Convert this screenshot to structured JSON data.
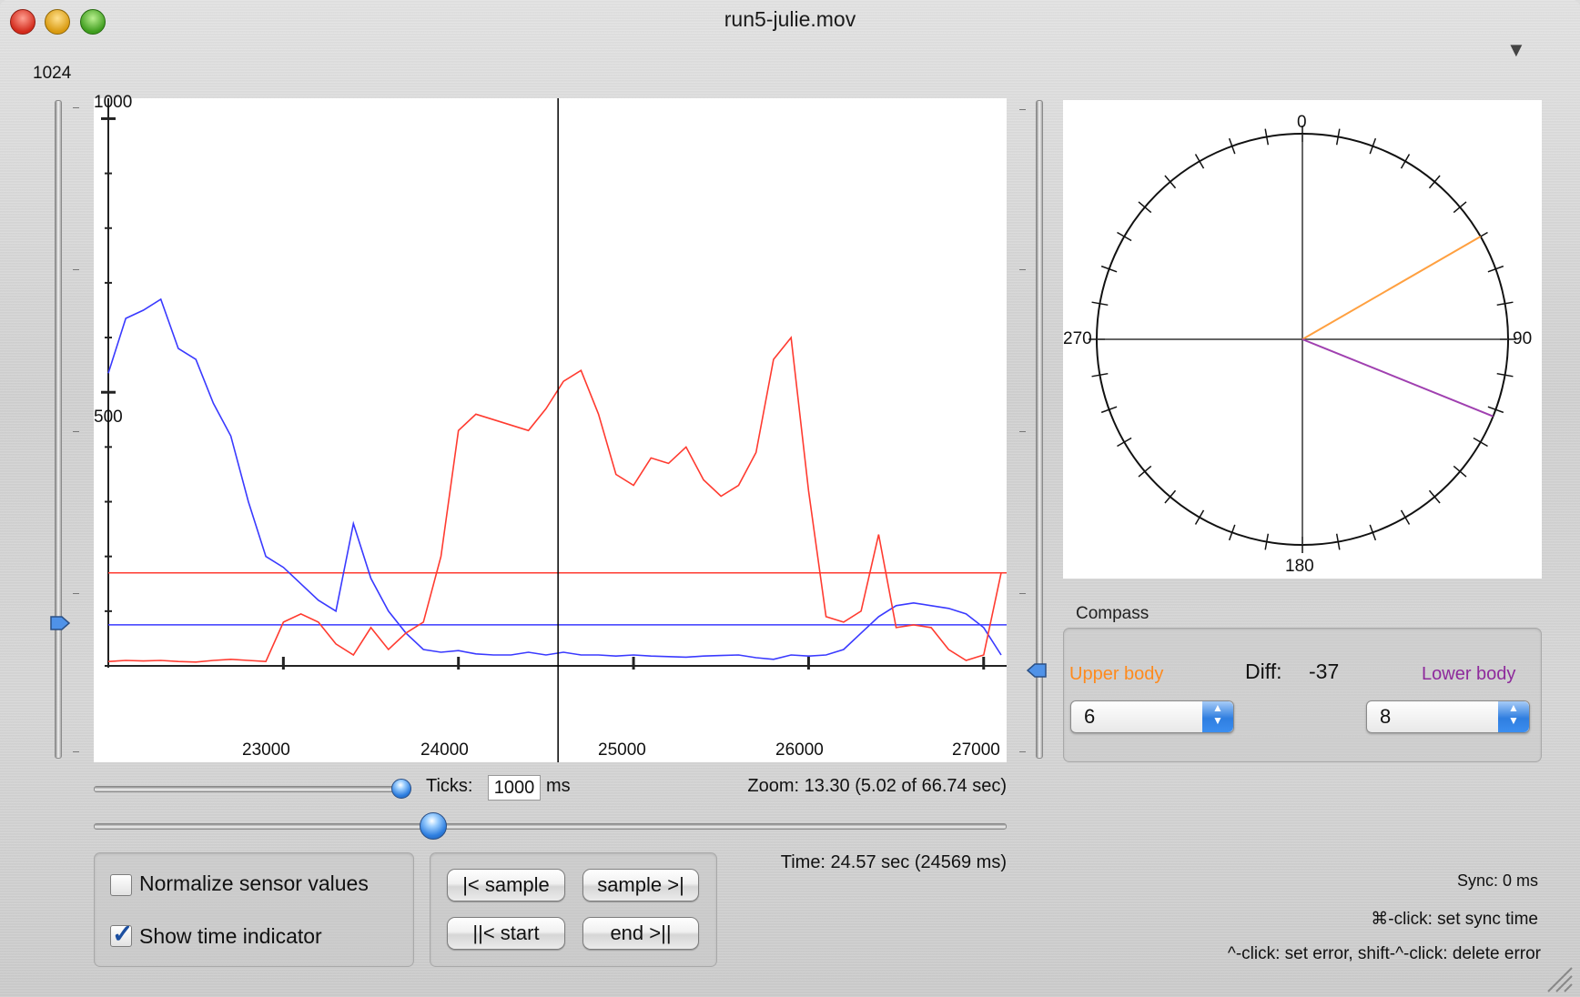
{
  "window": {
    "title": "run5-julie.mov"
  },
  "left_slider": {
    "max_label": "1024"
  },
  "graph": {
    "y_tick_labels": [
      "1000",
      "500"
    ],
    "x_tick_labels": [
      "23000",
      "24000",
      "25000",
      "26000",
      "27000"
    ]
  },
  "chart_data": {
    "type": "line",
    "xlim": [
      22000,
      27100
    ],
    "ylim": [
      0,
      1024
    ],
    "y_ticks": [
      1000,
      500
    ],
    "x_ticks": [
      23000,
      24000,
      25000,
      26000,
      27000
    ],
    "time_indicator_x": 24569,
    "threshold_lines": [
      {
        "color": "#ff3b30",
        "y": 170
      },
      {
        "color": "#3a3aff",
        "y": 75
      }
    ],
    "series": [
      {
        "color": "#3a3aff",
        "x": [
          22000,
          22100,
          22200,
          22300,
          22400,
          22500,
          22600,
          22700,
          22800,
          22900,
          23000,
          23100,
          23200,
          23300,
          23400,
          23500,
          23600,
          23700,
          23800,
          23900,
          24000,
          24100,
          24200,
          24300,
          24400,
          24500,
          24600,
          24700,
          24800,
          24900,
          25000,
          25100,
          25200,
          25300,
          25400,
          25500,
          25600,
          25700,
          25800,
          25900,
          26000,
          26100,
          26200,
          26300,
          26400,
          26500,
          26600,
          26700,
          26800,
          26900,
          27000,
          27100
        ],
        "y": [
          535,
          635,
          650,
          670,
          580,
          560,
          480,
          420,
          300,
          200,
          180,
          150,
          120,
          100,
          260,
          160,
          100,
          60,
          30,
          25,
          28,
          22,
          20,
          20,
          25,
          20,
          25,
          20,
          20,
          18,
          20,
          18,
          17,
          16,
          18,
          19,
          20,
          15,
          12,
          20,
          18,
          20,
          30,
          60,
          90,
          110,
          115,
          110,
          105,
          95,
          70,
          20
        ]
      },
      {
        "color": "#ff3b30",
        "x": [
          22000,
          22100,
          22200,
          22300,
          22400,
          22500,
          22600,
          22700,
          22800,
          22900,
          23000,
          23100,
          23200,
          23300,
          23400,
          23500,
          23600,
          23700,
          23800,
          23900,
          24000,
          24100,
          24200,
          24300,
          24400,
          24500,
          24600,
          24700,
          24800,
          24900,
          25000,
          25100,
          25200,
          25300,
          25400,
          25500,
          25600,
          25700,
          25800,
          25900,
          26000,
          26100,
          26200,
          26300,
          26400,
          26500,
          26600,
          26700,
          26800,
          26900,
          27000,
          27100
        ],
        "y": [
          8,
          10,
          9,
          10,
          8,
          7,
          10,
          12,
          10,
          8,
          80,
          95,
          80,
          40,
          20,
          70,
          30,
          60,
          80,
          200,
          430,
          460,
          450,
          440,
          430,
          470,
          520,
          540,
          460,
          350,
          330,
          380,
          370,
          400,
          340,
          310,
          330,
          390,
          560,
          600,
          320,
          90,
          80,
          100,
          240,
          70,
          75,
          70,
          30,
          10,
          20,
          170
        ]
      }
    ]
  },
  "controls": {
    "ticks_label": "Ticks:",
    "ticks_value": "1000",
    "ticks_unit": "ms",
    "zoom_text": "Zoom: 13.30 (5.02 of 66.74 sec)",
    "time_text": "Time: 24.57 sec (24569 ms)",
    "normalize_label": "Normalize sensor values",
    "normalize_checked": false,
    "show_time_label": "Show time indicator",
    "show_time_checked": true,
    "prev_sample": "|< sample",
    "next_sample": "sample >|",
    "start": "||< start",
    "end": "end >||"
  },
  "compass": {
    "labels": {
      "top": "0",
      "right": "90",
      "bottom": "180",
      "left": "270"
    },
    "upper_angle_deg": 60,
    "lower_angle_deg": 112,
    "upper_color": "#ffa040",
    "lower_color": "#a040b0",
    "group_title": "Compass",
    "upper_label": "Upper body",
    "lower_label": "Lower body",
    "diff_label": "Diff:",
    "diff_value": "-37",
    "upper_value": "6",
    "lower_value": "8"
  },
  "footer": {
    "sync": "Sync: 0 ms",
    "hint_sync": "⌘-click: set sync time",
    "hint_error": "^-click: set error,  shift-^-click: delete error"
  }
}
